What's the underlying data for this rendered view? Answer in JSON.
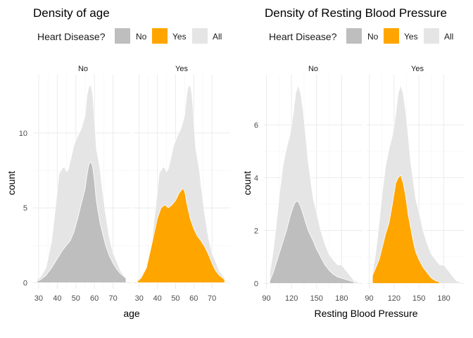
{
  "colors": {
    "no": "#BEBEBE",
    "yes": "#FFA500",
    "all": "#E5E5E5"
  },
  "legend": {
    "title": "Heart Disease?",
    "items": [
      "No",
      "Yes",
      "All"
    ]
  },
  "chart_data": [
    {
      "type": "area",
      "title": "Density of age",
      "xlabel": "age",
      "ylabel": "count",
      "xlim": [
        27,
        80
      ],
      "ylim": [
        -0.4,
        13.9
      ],
      "xticks": [
        30,
        40,
        50,
        60,
        70
      ],
      "yticks": [
        0,
        5,
        10
      ],
      "facets": [
        "No",
        "Yes"
      ],
      "series": [
        {
          "name": "All",
          "x": [
            29,
            31,
            34,
            37,
            39,
            41,
            43,
            44,
            45,
            46,
            47,
            49,
            51,
            53,
            55,
            56,
            57,
            58,
            59,
            60,
            61,
            62,
            63,
            64,
            66,
            68,
            70,
            72,
            74,
            77
          ],
          "values": [
            0.2,
            0.4,
            1.0,
            2.8,
            5.0,
            7.3,
            7.7,
            7.7,
            7.4,
            7.6,
            8.1,
            9.2,
            9.8,
            10.3,
            11.2,
            12.5,
            13.1,
            13.2,
            12.6,
            11.0,
            9.0,
            8.3,
            7.6,
            6.5,
            4.6,
            3.0,
            2.0,
            1.4,
            0.8,
            0.3
          ]
        },
        {
          "name": "No",
          "x": [
            29,
            31,
            34,
            37,
            40,
            43,
            45,
            47,
            49,
            51,
            53,
            55,
            56,
            57,
            58,
            59,
            60,
            61,
            62,
            63,
            64,
            66,
            68,
            70,
            72,
            74,
            77
          ],
          "values": [
            0.1,
            0.2,
            0.5,
            1.0,
            1.6,
            2.2,
            2.5,
            2.8,
            3.4,
            4.3,
            5.3,
            6.3,
            7.2,
            7.9,
            8.1,
            7.8,
            6.8,
            5.5,
            4.7,
            4.0,
            3.5,
            2.5,
            1.8,
            1.3,
            0.9,
            0.6,
            0.3
          ]
        },
        {
          "name": "Yes",
          "x": [
            29,
            31,
            34,
            37,
            40,
            42,
            44,
            46,
            48,
            50,
            52,
            54,
            55,
            56,
            58,
            60,
            62,
            64,
            66,
            68,
            70,
            72,
            74,
            77
          ],
          "values": [
            0.1,
            0.3,
            1.0,
            2.6,
            4.3,
            5.0,
            5.2,
            5.0,
            5.2,
            5.5,
            6.0,
            6.3,
            6.1,
            5.4,
            4.3,
            3.6,
            3.1,
            2.8,
            2.4,
            1.9,
            1.3,
            0.8,
            0.5,
            0.2
          ]
        }
      ]
    },
    {
      "type": "area",
      "title": "Density of Resting Blood Pressure",
      "xlabel": "Resting Blood Pressure",
      "ylabel": "count",
      "xlim": [
        87,
        205
      ],
      "ylim": [
        -0.2,
        7.9
      ],
      "xticks": [
        90,
        120,
        150,
        180
      ],
      "yticks": [
        0,
        2,
        4,
        6
      ],
      "facets": [
        "No",
        "Yes"
      ],
      "series": [
        {
          "name": "All",
          "x": [
            94,
            98,
            102,
            106,
            110,
            114,
            118,
            122,
            125,
            128,
            131,
            134,
            137,
            140,
            143,
            146,
            150,
            155,
            160,
            165,
            170,
            175,
            180,
            185,
            190,
            195,
            200
          ],
          "values": [
            0.4,
            1.2,
            2.3,
            3.5,
            4.5,
            5.1,
            5.6,
            6.4,
            7.2,
            7.5,
            7.2,
            6.5,
            5.6,
            4.6,
            3.9,
            3.2,
            2.7,
            2.0,
            1.5,
            1.1,
            0.9,
            0.7,
            0.7,
            0.5,
            0.3,
            0.1,
            0.05
          ]
        },
        {
          "name": "No",
          "x": [
            94,
            98,
            102,
            106,
            110,
            114,
            118,
            122,
            125,
            128,
            131,
            134,
            137,
            140,
            143,
            146,
            150,
            155,
            160,
            165,
            170,
            175,
            180,
            185,
            190,
            195
          ],
          "values": [
            0.1,
            0.4,
            0.8,
            1.2,
            1.6,
            2.0,
            2.5,
            2.9,
            3.1,
            3.1,
            2.9,
            2.6,
            2.3,
            2.0,
            1.8,
            1.6,
            1.3,
            1.0,
            0.7,
            0.5,
            0.35,
            0.25,
            0.2,
            0.15,
            0.1,
            0.05
          ]
        },
        {
          "name": "Yes",
          "x": [
            94,
            98,
            102,
            106,
            110,
            114,
            118,
            122,
            125,
            128,
            131,
            134,
            137,
            140,
            143,
            146,
            150,
            155,
            160,
            165,
            170,
            175
          ],
          "values": [
            0.3,
            0.6,
            0.9,
            1.4,
            1.9,
            2.3,
            3.0,
            3.8,
            4.0,
            4.1,
            3.8,
            3.3,
            2.6,
            2.1,
            1.6,
            1.2,
            0.9,
            0.6,
            0.4,
            0.2,
            0.1,
            0.05
          ]
        }
      ]
    }
  ]
}
